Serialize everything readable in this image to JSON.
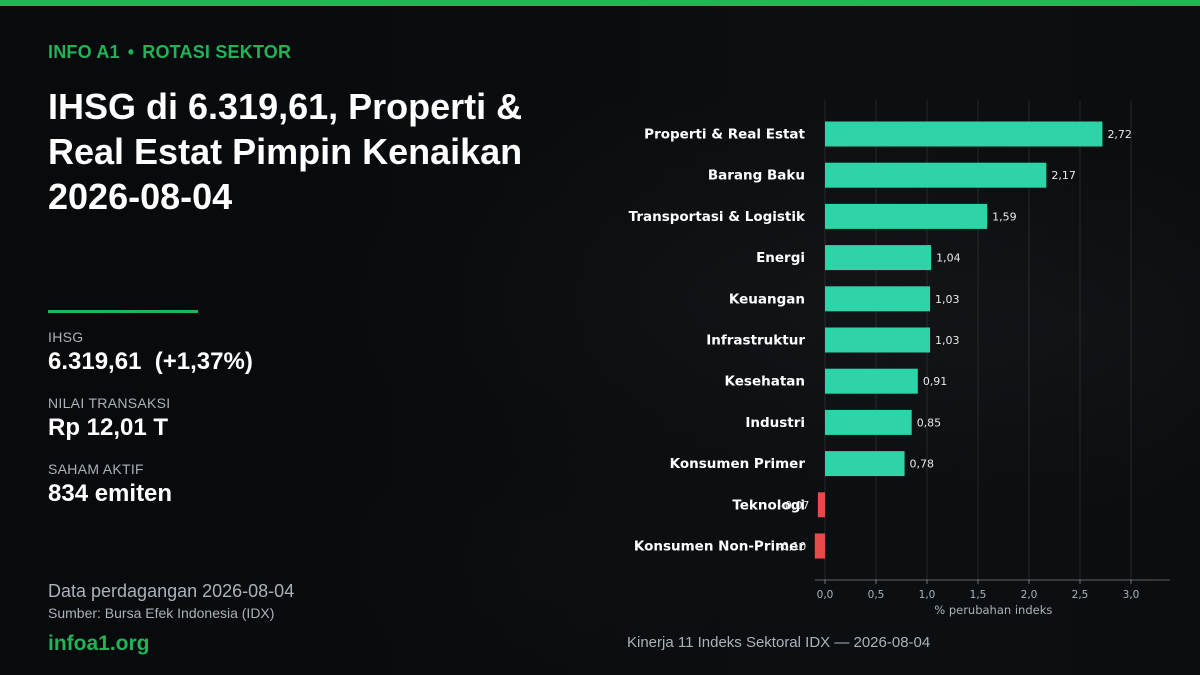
{
  "kicker": {
    "brand": "INFO A1",
    "separator": "•",
    "section": "ROTASI SEKTOR"
  },
  "headline": "IHSG di 6.319,61, Properti & Real Estat Pimpin Kenaikan 2026-08-04",
  "stats": {
    "ihsg_label": "IHSG",
    "ihsg_value": "6.319,61  (+1,37%)",
    "transaction_label": "NILAI TRANSAKSI",
    "transaction_value": "Rp 12,01 T",
    "active_label": "SAHAM AKTIF",
    "active_value": "834 emiten"
  },
  "footer": {
    "date": "Data perdagangan 2026-08-04",
    "source": "Sumber: Bursa Efek Indonesia (IDX)",
    "site": "infoa1.org"
  },
  "chart_caption": "Kinerja 11 Indeks Sektoral IDX — 2026-08-04",
  "colors": {
    "accent": "#22b358",
    "positive": "#2ed3a8",
    "negative": "#e84a4a"
  },
  "chart_data": {
    "type": "bar",
    "orientation": "horizontal",
    "categories": [
      "Properti & Real Estat",
      "Barang Baku",
      "Transportasi & Logistik",
      "Energi",
      "Keuangan",
      "Infrastruktur",
      "Kesehatan",
      "Industri",
      "Konsumen Primer",
      "Teknologi",
      "Konsumen Non-Primer"
    ],
    "values": [
      2.72,
      2.17,
      1.59,
      1.04,
      1.03,
      1.03,
      0.91,
      0.85,
      0.78,
      -0.07,
      -0.1
    ],
    "value_labels": [
      "2,72",
      "2,17",
      "1,59",
      "1,04",
      "1,03",
      "1,03",
      "0,91",
      "0,85",
      "0,78",
      "-0,07",
      "-0,10"
    ],
    "xlabel": "% perubahan indeks",
    "xticks": [
      0,
      0.5,
      1.0,
      1.5,
      2.0,
      2.5,
      3.0
    ],
    "xtick_labels": [
      "0,0",
      "0,5",
      "1,0",
      "1,5",
      "2,0",
      "2,5",
      "3,0"
    ],
    "xlim": [
      -0.1,
      3.3
    ],
    "grid": "vertical"
  }
}
